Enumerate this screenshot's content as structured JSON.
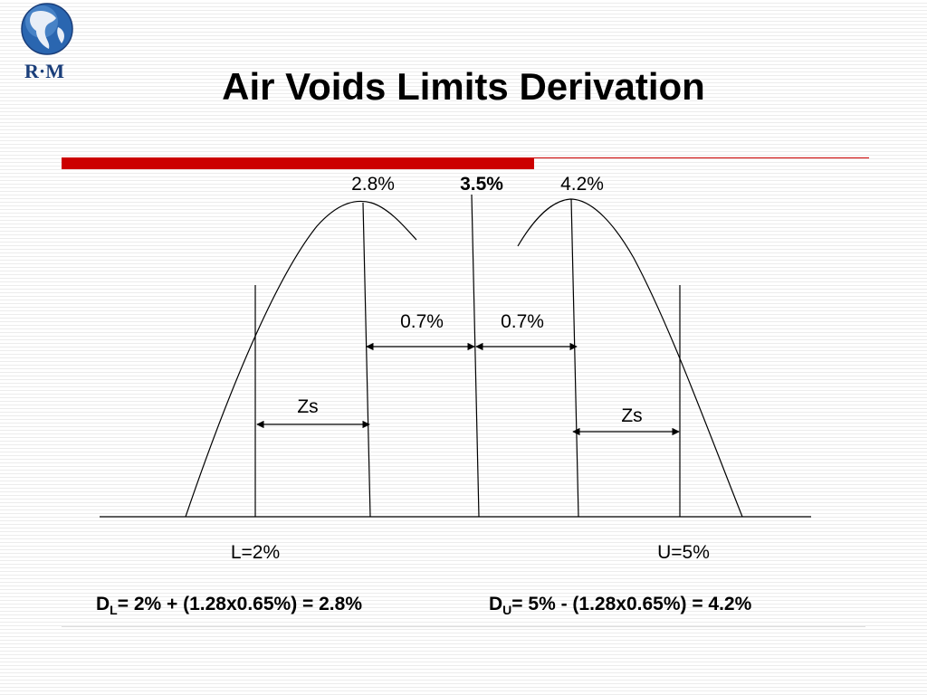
{
  "title": "Air Voids Limits Derivation",
  "logo": {
    "text": "R·M"
  },
  "diagram": {
    "peak_left": "2.8%",
    "center": "3.5%",
    "peak_right": "4.2%",
    "offset_left": "0.7%",
    "offset_right": "0.7%",
    "zs_left": "Zs",
    "zs_right": "Zs",
    "lower_limit": "L=2%",
    "upper_limit": "U=5%"
  },
  "formulas": {
    "lower": {
      "prefix": "D",
      "sub": "L",
      "expression": "= 2% + (1.28x0.65%) = 2.8%"
    },
    "upper": {
      "prefix": "D",
      "sub": "U",
      "expression": "= 5% - (1.28x0.65%) = 4.2%"
    }
  },
  "colors": {
    "accent": "#cc0000",
    "globe": "#1f5fa8",
    "logo_text": "#1a3e7a"
  }
}
